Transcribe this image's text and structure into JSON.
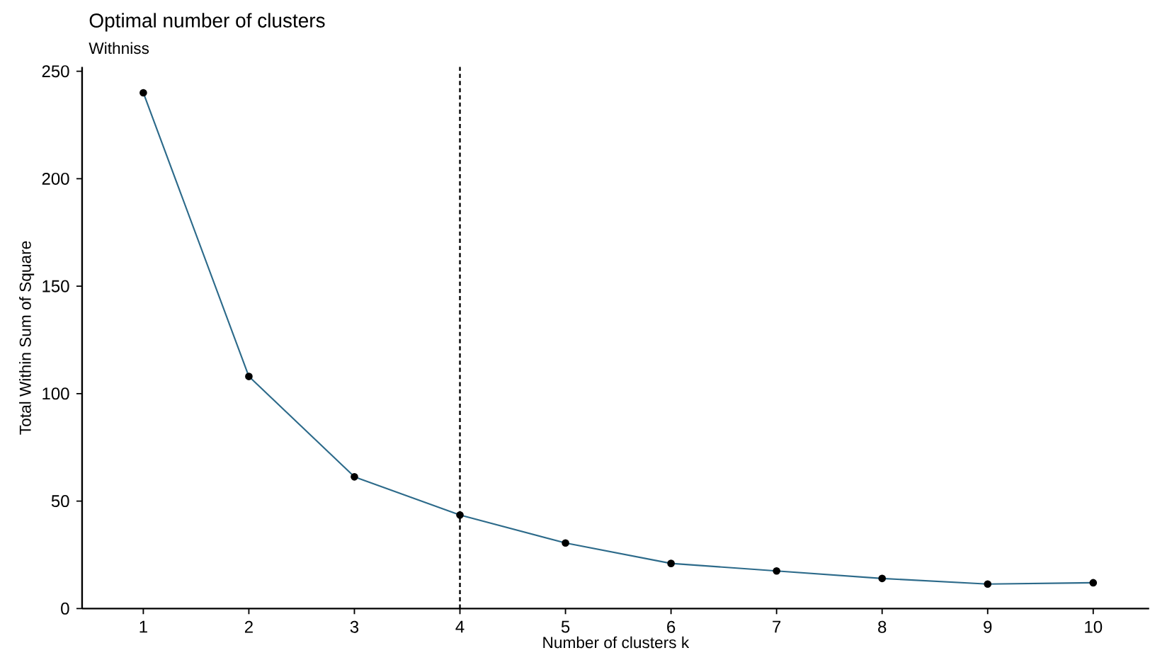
{
  "chart_data": {
    "type": "line",
    "title": "Optimal number of clusters",
    "subtitle": "Withniss",
    "xlabel": "Number of clusters k",
    "ylabel": "Total Within Sum of Square",
    "x": [
      1,
      2,
      3,
      4,
      5,
      6,
      7,
      8,
      9,
      10
    ],
    "series": [
      {
        "color": "#2c6a8a",
        "values": [
          240,
          108,
          61.3,
          43.5,
          30.5,
          21,
          17.5,
          14,
          11.4,
          12
        ]
      }
    ],
    "marker": "circle",
    "xlim": [
      0.42,
      10.53
    ],
    "ylim": [
      0,
      252
    ],
    "xticks": [
      1,
      2,
      3,
      4,
      5,
      6,
      7,
      8,
      9,
      10
    ],
    "yticks": [
      0,
      50,
      100,
      150,
      200,
      250
    ],
    "ref_lines": [
      {
        "axis": "x",
        "value": 4,
        "color": "#000000",
        "line_style": "dashed"
      }
    ],
    "grid": false
  }
}
